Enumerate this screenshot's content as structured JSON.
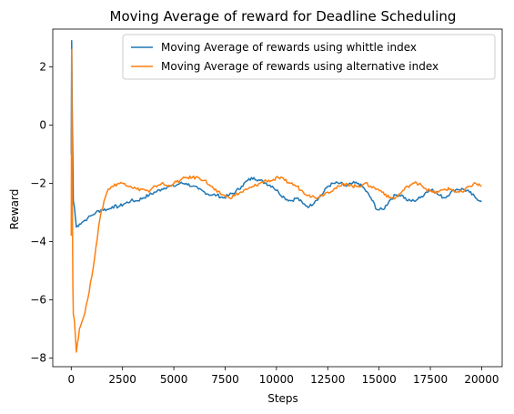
{
  "chart_data": {
    "type": "line",
    "title": "Moving Average of reward for Deadline Scheduling",
    "xlabel": "Steps",
    "ylabel": "Reward",
    "xlim": [
      -900,
      21000
    ],
    "ylim": [
      -8.3,
      3.3
    ],
    "xticks": [
      0,
      2500,
      5000,
      7500,
      10000,
      12500,
      15000,
      17500,
      20000
    ],
    "xtick_labels": [
      "0",
      "2500",
      "5000",
      "7500",
      "10000",
      "12500",
      "15000",
      "17500",
      "20000"
    ],
    "yticks": [
      -8,
      -6,
      -4,
      -2,
      0,
      2
    ],
    "ytick_labels": [
      "−8",
      "−6",
      "−4",
      "−2",
      "0",
      "2"
    ],
    "legend_position": "upper-right",
    "series": [
      {
        "name": "Moving Average of rewards using whittle index",
        "color": "#1f77b4",
        "x": [
          0,
          20,
          50,
          100,
          150,
          250,
          400,
          600,
          800,
          1000,
          1200,
          1500,
          1800,
          2000,
          2300,
          2600,
          2900,
          3200,
          3500,
          3800,
          4100,
          4400,
          4700,
          5000,
          5300,
          5600,
          5900,
          6200,
          6500,
          6800,
          7100,
          7400,
          7700,
          8000,
          8300,
          8600,
          8900,
          9200,
          9500,
          9800,
          10100,
          10400,
          10700,
          11000,
          11300,
          11600,
          11900,
          12200,
          12500,
          12800,
          13100,
          13400,
          13700,
          14000,
          14300,
          14600,
          14900,
          15200,
          15500,
          15800,
          16100,
          16400,
          16700,
          17000,
          17300,
          17600,
          17900,
          18200,
          18500,
          18800,
          19100,
          19400,
          19700,
          20000
        ],
        "y": [
          -1.0,
          2.9,
          0.5,
          -2.6,
          -2.8,
          -3.5,
          -3.4,
          -3.3,
          -3.2,
          -3.1,
          -3.0,
          -2.9,
          -2.9,
          -2.8,
          -2.8,
          -2.7,
          -2.6,
          -2.6,
          -2.5,
          -2.4,
          -2.3,
          -2.2,
          -2.1,
          -2.1,
          -2.0,
          -2.0,
          -2.1,
          -2.2,
          -2.3,
          -2.4,
          -2.4,
          -2.5,
          -2.4,
          -2.3,
          -2.1,
          -1.9,
          -1.8,
          -1.9,
          -2.0,
          -2.1,
          -2.3,
          -2.5,
          -2.6,
          -2.5,
          -2.7,
          -2.8,
          -2.6,
          -2.4,
          -2.1,
          -2.0,
          -2.0,
          -2.1,
          -2.0,
          -2.0,
          -2.2,
          -2.5,
          -2.9,
          -2.9,
          -2.6,
          -2.4,
          -2.4,
          -2.6,
          -2.6,
          -2.5,
          -2.3,
          -2.2,
          -2.4,
          -2.5,
          -2.3,
          -2.2,
          -2.2,
          -2.3,
          -2.5,
          -2.6
        ]
      },
      {
        "name": "Moving Average of rewards using alternative index",
        "color": "#ff7f0e",
        "x": [
          0,
          20,
          50,
          80,
          100,
          150,
          200,
          250,
          300,
          400,
          500,
          600,
          800,
          1000,
          1200,
          1400,
          1600,
          1800,
          2000,
          2300,
          2600,
          2900,
          3200,
          3500,
          3800,
          4100,
          4400,
          4700,
          5000,
          5300,
          5600,
          5900,
          6200,
          6500,
          6800,
          7100,
          7400,
          7700,
          8000,
          8300,
          8600,
          8900,
          9200,
          9500,
          9800,
          10100,
          10400,
          10700,
          11000,
          11300,
          11600,
          11900,
          12200,
          12500,
          12800,
          13100,
          13400,
          13700,
          14000,
          14300,
          14600,
          14900,
          15200,
          15500,
          15800,
          16100,
          16400,
          16700,
          17000,
          17300,
          17600,
          17900,
          18200,
          18500,
          18800,
          19100,
          19400,
          19700,
          20000
        ],
        "y": [
          -3.8,
          2.6,
          -2.0,
          -5.5,
          -6.5,
          -6.7,
          -7.2,
          -7.8,
          -7.5,
          -7.0,
          -6.8,
          -6.6,
          -6.0,
          -5.2,
          -4.2,
          -3.2,
          -2.6,
          -2.2,
          -2.1,
          -2.0,
          -2.0,
          -2.1,
          -2.2,
          -2.2,
          -2.3,
          -2.1,
          -2.0,
          -2.1,
          -2.0,
          -1.9,
          -1.8,
          -1.8,
          -1.8,
          -1.9,
          -2.1,
          -2.3,
          -2.4,
          -2.5,
          -2.4,
          -2.3,
          -2.2,
          -2.1,
          -2.0,
          -1.9,
          -1.9,
          -1.8,
          -1.9,
          -2.0,
          -2.1,
          -2.3,
          -2.4,
          -2.5,
          -2.4,
          -2.3,
          -2.2,
          -2.1,
          -2.0,
          -2.1,
          -2.1,
          -2.0,
          -2.1,
          -2.2,
          -2.3,
          -2.5,
          -2.5,
          -2.3,
          -2.1,
          -2.0,
          -2.0,
          -2.2,
          -2.3,
          -2.3,
          -2.2,
          -2.2,
          -2.3,
          -2.3,
          -2.1,
          -2.0,
          -2.1
        ]
      }
    ]
  }
}
